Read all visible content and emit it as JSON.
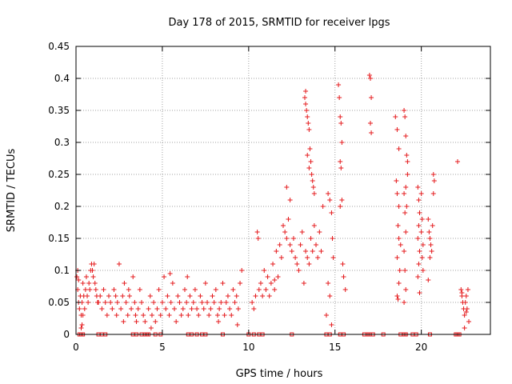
{
  "chart_data": {
    "type": "scatter",
    "title": "Day 178 of 2015, SRMTID for receiver lpgs",
    "xlabel": "GPS time / hours",
    "ylabel": "SRMTID / TECUs",
    "xlim": [
      0,
      24
    ],
    "ylim": [
      0,
      0.45
    ],
    "xticks": [
      0,
      5,
      10,
      15,
      20
    ],
    "xtick_labels": [
      "0",
      "5",
      "10",
      "15",
      "20"
    ],
    "yticks": [
      0,
      0.05,
      0.1,
      0.15,
      0.2,
      0.25,
      0.3,
      0.35,
      0.4,
      0.45
    ],
    "ytick_labels": [
      "0",
      "0.05",
      "0.1",
      "0.15",
      "0.2",
      "0.25",
      "0.3",
      "0.35",
      "0.4",
      "0.45"
    ],
    "grid": true,
    "marker": "plus",
    "color": "#e41a1c",
    "series": [
      {
        "name": "SRMTID",
        "points": [
          [
            0.05,
            0.09
          ],
          [
            0.1,
            0.07
          ],
          [
            0.15,
            0.05
          ],
          [
            0.2,
            0.04
          ],
          [
            0.25,
            0.06
          ],
          [
            0.3,
            0.03
          ],
          [
            0.35,
            0.05
          ],
          [
            0.4,
            0.08
          ],
          [
            0.45,
            0.06
          ],
          [
            0.5,
            0.04
          ],
          [
            0.55,
            0.07
          ],
          [
            0.6,
            0.09
          ],
          [
            0.65,
            0.06
          ],
          [
            0.7,
            0.05
          ],
          [
            0.75,
            0.08
          ],
          [
            0.8,
            0.07
          ],
          [
            0.85,
            0.1
          ],
          [
            0.9,
            0.11
          ],
          [
            0.95,
            0.1
          ],
          [
            1.0,
            0.09
          ],
          [
            1.05,
            0.11
          ],
          [
            1.1,
            0.08
          ],
          [
            1.15,
            0.07
          ],
          [
            1.2,
            0.06
          ],
          [
            1.25,
            0.05
          ],
          [
            0.3,
            0.01
          ],
          [
            0.35,
            0.015
          ],
          [
            0.4,
            0.03
          ],
          [
            0.1,
            0.1
          ],
          [
            0.15,
            0.085
          ],
          [
            1.3,
            0.05
          ],
          [
            1.4,
            0.06
          ],
          [
            1.5,
            0.04
          ],
          [
            1.6,
            0.07
          ],
          [
            1.7,
            0.05
          ],
          [
            1.8,
            0.03
          ],
          [
            1.9,
            0.06
          ],
          [
            2.0,
            0.05
          ],
          [
            2.1,
            0.04
          ],
          [
            2.2,
            0.07
          ],
          [
            2.3,
            0.06
          ],
          [
            2.4,
            0.05
          ],
          [
            2.5,
            0.11
          ],
          [
            2.6,
            0.04
          ],
          [
            2.7,
            0.06
          ],
          [
            2.8,
            0.08
          ],
          [
            2.9,
            0.05
          ],
          [
            3.0,
            0.03
          ],
          [
            3.1,
            0.06
          ],
          [
            3.2,
            0.04
          ],
          [
            3.3,
            0.09
          ],
          [
            3.4,
            0.05
          ],
          [
            3.5,
            0.02
          ],
          [
            3.6,
            0.04
          ],
          [
            3.7,
            0.07
          ],
          [
            3.8,
            0.05
          ],
          [
            3.9,
            0.03
          ],
          [
            4.0,
            0.02
          ],
          [
            2.35,
            0.03
          ],
          [
            2.75,
            0.02
          ],
          [
            3.05,
            0.07
          ],
          [
            3.45,
            0.03
          ],
          [
            4.2,
            0.04
          ],
          [
            4.3,
            0.06
          ],
          [
            4.4,
            0.03
          ],
          [
            4.5,
            0.05
          ],
          [
            4.6,
            0.02
          ],
          [
            4.7,
            0.04
          ],
          [
            4.8,
            0.07
          ],
          [
            4.9,
            0.03
          ],
          [
            5.0,
            0.05
          ],
          [
            5.1,
            0.09
          ],
          [
            5.2,
            0.04
          ],
          [
            5.3,
            0.06
          ],
          [
            5.4,
            0.03
          ],
          [
            5.5,
            0.05
          ],
          [
            5.6,
            0.08
          ],
          [
            5.7,
            0.04
          ],
          [
            5.8,
            0.02
          ],
          [
            5.9,
            0.06
          ],
          [
            6.0,
            0.05
          ],
          [
            6.1,
            0.03
          ],
          [
            6.2,
            0.04
          ],
          [
            6.3,
            0.07
          ],
          [
            6.4,
            0.05
          ],
          [
            6.5,
            0.03
          ],
          [
            6.6,
            0.06
          ],
          [
            6.7,
            0.04
          ],
          [
            6.8,
            0.05
          ],
          [
            6.9,
            0.07
          ],
          [
            7.0,
            0.04
          ],
          [
            7.1,
            0.03
          ],
          [
            7.2,
            0.06
          ],
          [
            7.3,
            0.05
          ],
          [
            7.4,
            0.04
          ],
          [
            7.5,
            0.08
          ],
          [
            7.6,
            0.05
          ],
          [
            7.7,
            0.03
          ],
          [
            7.8,
            0.04
          ],
          [
            7.9,
            0.06
          ],
          [
            8.0,
            0.05
          ],
          [
            8.1,
            0.07
          ],
          [
            8.2,
            0.03
          ],
          [
            8.3,
            0.04
          ],
          [
            8.4,
            0.05
          ],
          [
            8.5,
            0.08
          ],
          [
            8.6,
            0.03
          ],
          [
            8.7,
            0.05
          ],
          [
            8.8,
            0.06
          ],
          [
            8.9,
            0.04
          ],
          [
            9.0,
            0.03
          ],
          [
            9.1,
            0.07
          ],
          [
            9.2,
            0.05
          ],
          [
            9.3,
            0.06
          ],
          [
            9.4,
            0.04
          ],
          [
            9.5,
            0.08
          ],
          [
            9.6,
            0.1
          ],
          [
            4.35,
            0.01
          ],
          [
            5.45,
            0.095
          ],
          [
            6.45,
            0.09
          ],
          [
            8.25,
            0.02
          ],
          [
            9.35,
            0.015
          ],
          [
            10.2,
            0.05
          ],
          [
            10.3,
            0.04
          ],
          [
            10.4,
            0.06
          ],
          [
            10.5,
            0.16
          ],
          [
            10.55,
            0.15
          ],
          [
            10.6,
            0.07
          ],
          [
            10.7,
            0.08
          ],
          [
            10.8,
            0.06
          ],
          [
            10.9,
            0.1
          ],
          [
            11.0,
            0.07
          ],
          [
            11.1,
            0.09
          ],
          [
            11.2,
            0.06
          ],
          [
            11.3,
            0.08
          ],
          [
            11.4,
            0.11
          ],
          [
            11.5,
            0.07
          ],
          [
            11.6,
            0.13
          ],
          [
            11.7,
            0.09
          ],
          [
            11.8,
            0.14
          ],
          [
            11.9,
            0.12
          ],
          [
            12.0,
            0.17
          ],
          [
            12.1,
            0.16
          ],
          [
            12.2,
            0.15
          ],
          [
            12.3,
            0.18
          ],
          [
            12.4,
            0.14
          ],
          [
            12.5,
            0.13
          ],
          [
            12.6,
            0.15
          ],
          [
            12.7,
            0.12
          ],
          [
            12.8,
            0.11
          ],
          [
            12.9,
            0.1
          ],
          [
            13.0,
            0.14
          ],
          [
            13.1,
            0.16
          ],
          [
            13.2,
            0.08
          ],
          [
            13.3,
            0.13
          ],
          [
            13.4,
            0.12
          ],
          [
            13.5,
            0.11
          ],
          [
            13.6,
            0.15
          ],
          [
            13.7,
            0.13
          ],
          [
            13.8,
            0.17
          ],
          [
            13.9,
            0.14
          ],
          [
            14.0,
            0.12
          ],
          [
            14.1,
            0.16
          ],
          [
            14.2,
            0.13
          ],
          [
            14.3,
            0.2
          ],
          [
            11.5,
            0.085
          ],
          [
            12.2,
            0.23
          ],
          [
            12.4,
            0.21
          ],
          [
            13.25,
            0.37
          ],
          [
            13.3,
            0.36
          ],
          [
            13.35,
            0.35
          ],
          [
            13.4,
            0.34
          ],
          [
            13.45,
            0.33
          ],
          [
            13.5,
            0.32
          ],
          [
            13.55,
            0.29
          ],
          [
            13.6,
            0.27
          ],
          [
            13.65,
            0.25
          ],
          [
            13.7,
            0.24
          ],
          [
            13.75,
            0.23
          ],
          [
            13.8,
            0.22
          ],
          [
            13.3,
            0.38
          ],
          [
            13.4,
            0.28
          ],
          [
            13.5,
            0.26
          ],
          [
            14.6,
            0.22
          ],
          [
            14.7,
            0.21
          ],
          [
            14.8,
            0.19
          ],
          [
            14.85,
            0.15
          ],
          [
            14.9,
            0.12
          ],
          [
            14.6,
            0.08
          ],
          [
            14.7,
            0.06
          ],
          [
            14.5,
            0.03
          ],
          [
            14.8,
            0.015
          ],
          [
            15.2,
            0.39
          ],
          [
            15.25,
            0.37
          ],
          [
            15.3,
            0.34
          ],
          [
            15.35,
            0.33
          ],
          [
            15.4,
            0.3
          ],
          [
            15.3,
            0.27
          ],
          [
            15.35,
            0.26
          ],
          [
            15.4,
            0.21
          ],
          [
            15.45,
            0.11
          ],
          [
            15.5,
            0.09
          ],
          [
            15.6,
            0.07
          ],
          [
            15.3,
            0.2
          ],
          [
            17.0,
            0.405
          ],
          [
            17.05,
            0.4
          ],
          [
            17.1,
            0.37
          ],
          [
            17.05,
            0.33
          ],
          [
            17.1,
            0.315
          ],
          [
            18.5,
            0.34
          ],
          [
            18.6,
            0.32
          ],
          [
            18.7,
            0.29
          ],
          [
            18.55,
            0.24
          ],
          [
            18.6,
            0.22
          ],
          [
            18.7,
            0.2
          ],
          [
            18.65,
            0.17
          ],
          [
            18.7,
            0.15
          ],
          [
            18.6,
            0.12
          ],
          [
            18.75,
            0.1
          ],
          [
            18.7,
            0.08
          ],
          [
            18.6,
            0.06
          ],
          [
            18.65,
            0.055
          ],
          [
            19.0,
            0.35
          ],
          [
            19.05,
            0.34
          ],
          [
            19.1,
            0.31
          ],
          [
            19.15,
            0.28
          ],
          [
            19.2,
            0.25
          ],
          [
            19.0,
            0.22
          ],
          [
            19.05,
            0.19
          ],
          [
            19.1,
            0.16
          ],
          [
            19.0,
            0.13
          ],
          [
            19.05,
            0.1
          ],
          [
            19.1,
            0.07
          ],
          [
            19.0,
            0.05
          ],
          [
            19.2,
            0.27
          ],
          [
            19.1,
            0.23
          ],
          [
            19.15,
            0.2
          ],
          [
            18.8,
            0.14
          ],
          [
            19.8,
            0.23
          ],
          [
            19.85,
            0.21
          ],
          [
            19.9,
            0.19
          ],
          [
            19.85,
            0.17
          ],
          [
            19.8,
            0.15
          ],
          [
            19.9,
            0.13
          ],
          [
            19.85,
            0.11
          ],
          [
            19.8,
            0.09
          ],
          [
            19.9,
            0.065
          ],
          [
            20.0,
            0.22
          ],
          [
            20.05,
            0.18
          ],
          [
            20.0,
            0.16
          ],
          [
            20.1,
            0.14
          ],
          [
            20.05,
            0.12
          ],
          [
            20.1,
            0.1
          ],
          [
            20.4,
            0.18
          ],
          [
            20.45,
            0.16
          ],
          [
            20.5,
            0.15
          ],
          [
            20.55,
            0.14
          ],
          [
            20.6,
            0.13
          ],
          [
            20.65,
            0.17
          ],
          [
            20.7,
            0.25
          ],
          [
            20.75,
            0.24
          ],
          [
            20.7,
            0.22
          ],
          [
            20.4,
            0.085
          ],
          [
            20.5,
            0.12
          ],
          [
            22.1,
            0.27
          ],
          [
            22.3,
            0.07
          ],
          [
            22.35,
            0.06
          ],
          [
            22.4,
            0.05
          ],
          [
            22.45,
            0.04
          ],
          [
            22.5,
            0.03
          ],
          [
            22.55,
            0.05
          ],
          [
            22.6,
            0.06
          ],
          [
            22.65,
            0.04
          ],
          [
            22.7,
            0.07
          ],
          [
            22.75,
            0.02
          ],
          [
            22.5,
            0.01
          ],
          [
            22.35,
            0.065
          ],
          [
            22.6,
            0.035
          ]
        ]
      }
    ],
    "zero_markers": [
      0.2,
      0.3,
      0.4,
      1.3,
      1.5,
      1.7,
      3.3,
      3.5,
      3.8,
      4.0,
      4.1,
      4.2,
      4.6,
      4.9,
      6.5,
      6.7,
      7.0,
      7.3,
      7.5,
      8.5,
      10.0,
      10.3,
      10.6,
      10.8,
      12.5,
      14.5,
      14.7,
      15.3,
      15.5,
      16.7,
      16.9,
      17.0,
      17.2,
      17.8,
      18.8,
      19.0,
      19.1,
      19.5,
      19.7,
      20.5,
      22.0,
      22.1,
      22.2
    ]
  }
}
